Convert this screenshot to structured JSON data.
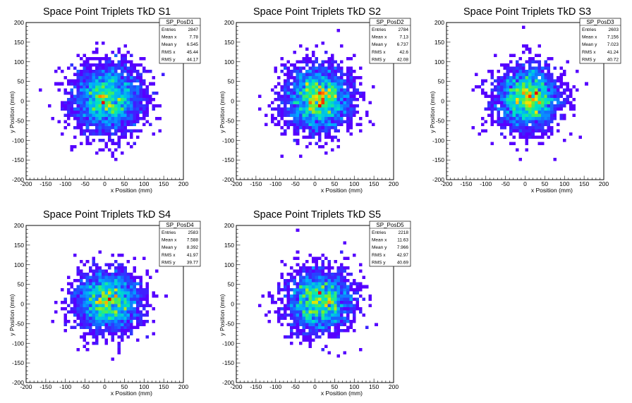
{
  "chart_data": [
    {
      "type": "heatmap",
      "title": "Space Point Triplets TkD S1",
      "xlabel": "x Position (mm)",
      "ylabel": "y Position (mm)",
      "xlim": [
        -200,
        200
      ],
      "ylim": [
        -200,
        200
      ],
      "xticks": [
        -200,
        -150,
        -100,
        -50,
        0,
        50,
        100,
        150,
        200
      ],
      "yticks": [
        -200,
        -150,
        -100,
        -50,
        0,
        50,
        100,
        150,
        200
      ],
      "stats": {
        "name": "SP_PosD1",
        "rows": [
          {
            "label": "Entries",
            "value": "2847"
          },
          {
            "label": "Mean x",
            "value": "7.78"
          },
          {
            "label": "Mean y",
            "value": "6.545"
          },
          {
            "label": "RMS x",
            "value": "45.44"
          },
          {
            "label": "RMS y",
            "value": "44.17"
          }
        ]
      },
      "entries": 2847,
      "mean_x": 7.78,
      "mean_y": 6.545,
      "rms_x": 45.44,
      "rms_y": 44.17
    },
    {
      "type": "heatmap",
      "title": "Space Point Triplets TkD S2",
      "xlabel": "x Position (mm)",
      "ylabel": "y Position (mm)",
      "xlim": [
        -200,
        200
      ],
      "ylim": [
        -200,
        200
      ],
      "xticks": [
        -200,
        -150,
        -100,
        -50,
        0,
        50,
        100,
        150,
        200
      ],
      "yticks": [
        -200,
        -150,
        -100,
        -50,
        0,
        50,
        100,
        150,
        200
      ],
      "stats": {
        "name": "SP_PosD2",
        "rows": [
          {
            "label": "Entries",
            "value": "2784"
          },
          {
            "label": "Mean x",
            "value": "7.13"
          },
          {
            "label": "Mean y",
            "value": "6.737"
          },
          {
            "label": "RMS x",
            "value": "42.6"
          },
          {
            "label": "RMS y",
            "value": "42.08"
          }
        ]
      },
      "entries": 2784,
      "mean_x": 7.13,
      "mean_y": 6.737,
      "rms_x": 42.6,
      "rms_y": 42.08
    },
    {
      "type": "heatmap",
      "title": "Space Point Triplets TkD S3",
      "xlabel": "x Position (mm)",
      "ylabel": "y Position (mm)",
      "xlim": [
        -200,
        200
      ],
      "ylim": [
        -200,
        200
      ],
      "xticks": [
        -200,
        -150,
        -100,
        -50,
        0,
        50,
        100,
        150,
        200
      ],
      "yticks": [
        -200,
        -150,
        -100,
        -50,
        0,
        50,
        100,
        150,
        200
      ],
      "stats": {
        "name": "SP_PosD3",
        "rows": [
          {
            "label": "Entries",
            "value": "2603"
          },
          {
            "label": "Mean x",
            "value": "7.156"
          },
          {
            "label": "Mean y",
            "value": "7.023"
          },
          {
            "label": "RMS x",
            "value": "41.24"
          },
          {
            "label": "RMS y",
            "value": "40.72"
          }
        ]
      },
      "entries": 2603,
      "mean_x": 7.156,
      "mean_y": 7.023,
      "rms_x": 41.24,
      "rms_y": 40.72
    },
    {
      "type": "heatmap",
      "title": "Space Point Triplets TkD S4",
      "xlabel": "x Position (mm)",
      "ylabel": "y Position (mm)",
      "xlim": [
        -200,
        200
      ],
      "ylim": [
        -200,
        200
      ],
      "xticks": [
        -200,
        -150,
        -100,
        -50,
        0,
        50,
        100,
        150,
        200
      ],
      "yticks": [
        -200,
        -150,
        -100,
        -50,
        0,
        50,
        100,
        150,
        200
      ],
      "stats": {
        "name": "SP_PosD4",
        "rows": [
          {
            "label": "Entries",
            "value": "2583"
          },
          {
            "label": "Mean x",
            "value": "7.588"
          },
          {
            "label": "Mean y",
            "value": "8.392"
          },
          {
            "label": "RMS x",
            "value": "41.97"
          },
          {
            "label": "RMS y",
            "value": "39.77"
          }
        ]
      },
      "entries": 2583,
      "mean_x": 7.588,
      "mean_y": 8.392,
      "rms_x": 41.97,
      "rms_y": 39.77
    },
    {
      "type": "heatmap",
      "title": "Space Point Triplets TkD S5",
      "xlabel": "x Position (mm)",
      "ylabel": "y Position (mm)",
      "xlim": [
        -200,
        200
      ],
      "ylim": [
        -200,
        200
      ],
      "xticks": [
        -200,
        -150,
        -100,
        -50,
        0,
        50,
        100,
        150,
        200
      ],
      "yticks": [
        -200,
        -150,
        -100,
        -50,
        0,
        50,
        100,
        150,
        200
      ],
      "stats": {
        "name": "SP_PosD5",
        "rows": [
          {
            "label": "Entries",
            "value": "2218"
          },
          {
            "label": "Mean x",
            "value": "11.63"
          },
          {
            "label": "Mean y",
            "value": "7.966"
          },
          {
            "label": "RMS x",
            "value": "42.97"
          },
          {
            "label": "RMS y",
            "value": "40.69"
          }
        ]
      },
      "entries": 2218,
      "mean_x": 11.63,
      "mean_y": 7.966,
      "rms_x": 42.97,
      "rms_y": 40.69
    }
  ]
}
